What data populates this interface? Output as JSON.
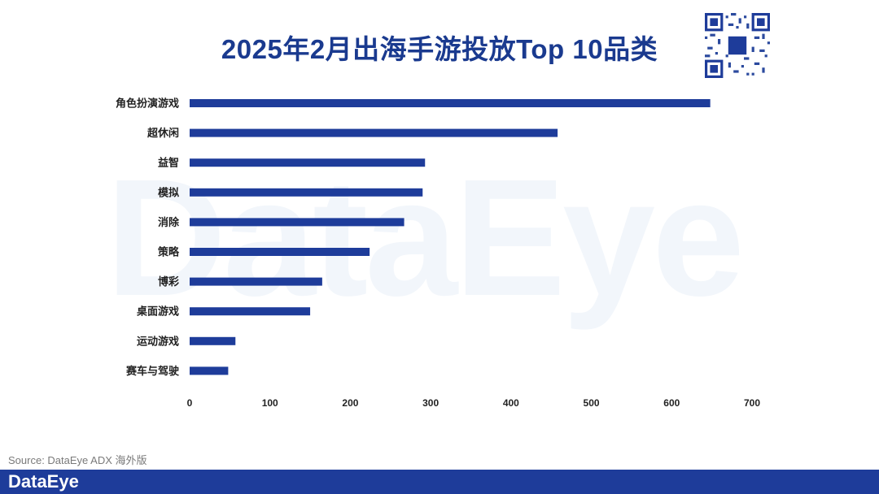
{
  "title": "2025年2月出海手游投放Top 10品类",
  "watermark": "DataEye",
  "source": "Source: DataEye ADX 海外版",
  "footer_logo": "DataEye",
  "colors": {
    "bar": "#1e3c9a",
    "title": "#1a3a8f",
    "footer": "#1e3c9a"
  },
  "icons": {
    "qr": "qr-code-icon"
  },
  "chart_data": {
    "type": "bar",
    "orientation": "horizontal",
    "categories": [
      "角色扮演游戏",
      "超休闲",
      "益智",
      "模拟",
      "消除",
      "策略",
      "博彩",
      "桌面游戏",
      "运动游戏",
      "赛车与驾驶"
    ],
    "values": [
      648,
      458,
      293,
      290,
      267,
      224,
      165,
      150,
      57,
      48
    ],
    "xlim": [
      0,
      700
    ],
    "xticks": [
      0,
      100,
      200,
      300,
      400,
      500,
      600,
      700
    ],
    "grid": false,
    "legend": "none"
  }
}
